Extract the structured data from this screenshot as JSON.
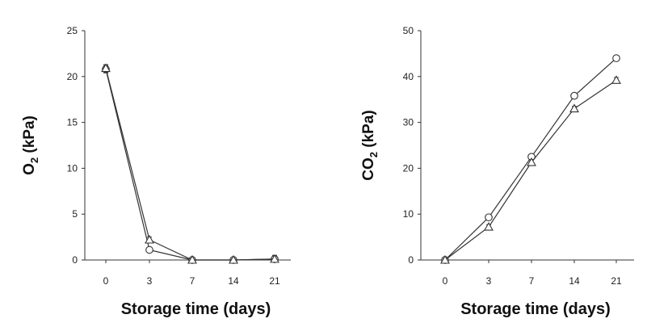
{
  "chart_data": [
    {
      "type": "line",
      "x_categories": [
        "0",
        "3",
        "7",
        "14",
        "21"
      ],
      "ylabel": "O",
      "ylabel_sub": "2",
      "ylabel_unit": " (kPa)",
      "xlabel": "Storage time (days)",
      "ylim": [
        0,
        25
      ],
      "yticks": [
        0,
        5,
        10,
        15,
        20,
        25
      ],
      "grid": false,
      "series": [
        {
          "marker": "circle",
          "values": [
            20.8,
            1.1,
            0.0,
            0.0,
            0.1
          ],
          "errors": [
            0.4,
            0.2,
            0.1,
            0.1,
            0.4
          ]
        },
        {
          "marker": "triangle",
          "values": [
            20.9,
            2.2,
            0.0,
            0.0,
            0.1
          ],
          "errors": [
            0.4,
            0.3,
            0.1,
            0.1,
            0.4
          ]
        }
      ]
    },
    {
      "type": "line",
      "x_categories": [
        "0",
        "3",
        "7",
        "14",
        "21"
      ],
      "ylabel": "CO",
      "ylabel_sub": "2",
      "ylabel_unit": " (kPa)",
      "xlabel": "Storage time (days)",
      "ylim": [
        0,
        50
      ],
      "yticks": [
        0,
        10,
        20,
        30,
        40,
        50
      ],
      "grid": false,
      "series": [
        {
          "marker": "circle",
          "values": [
            0.0,
            9.3,
            22.5,
            35.8,
            44.0
          ],
          "errors": [
            0.2,
            0.4,
            0.6,
            0.5,
            0.4
          ]
        },
        {
          "marker": "triangle",
          "values": [
            0.0,
            7.2,
            21.3,
            33.0,
            39.2
          ],
          "errors": [
            0.2,
            0.5,
            0.6,
            0.5,
            0.6
          ]
        }
      ]
    }
  ]
}
